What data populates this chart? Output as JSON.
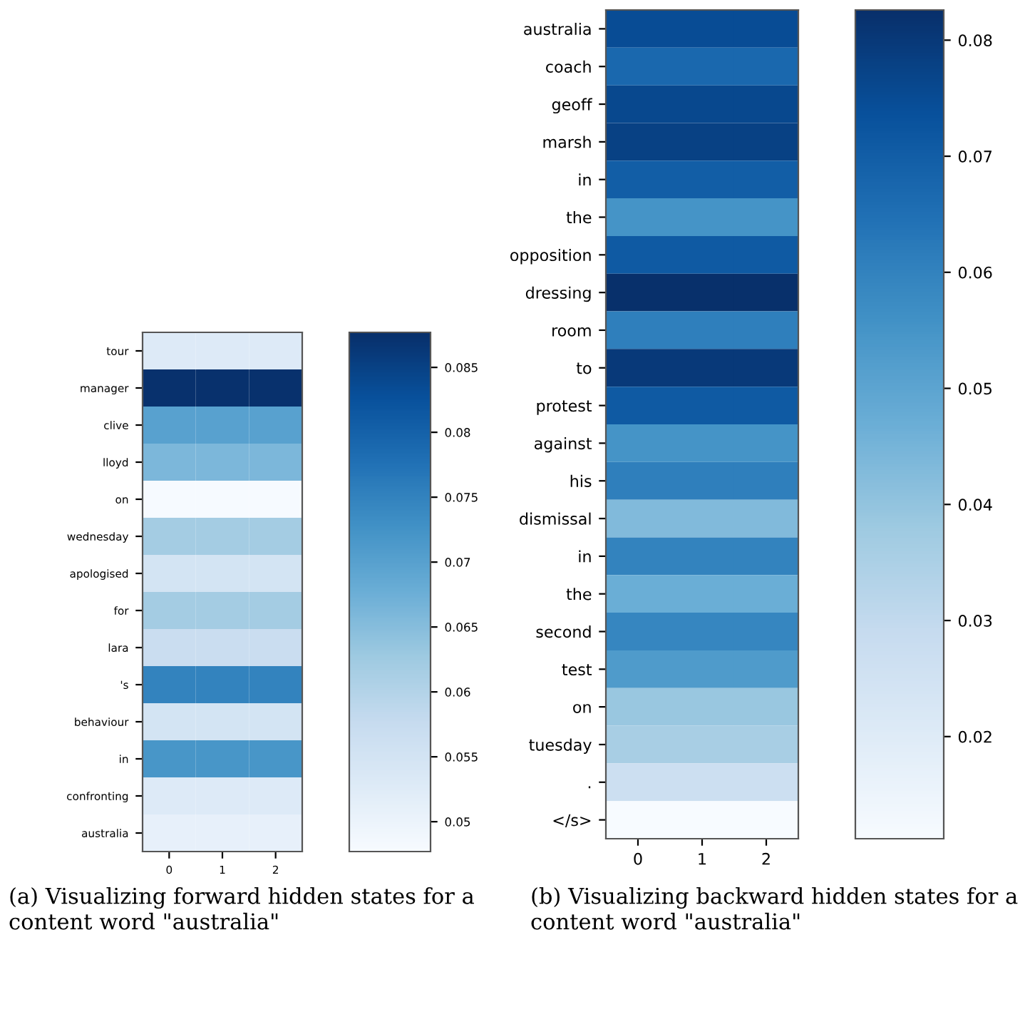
{
  "chart_data": [
    {
      "type": "heatmap",
      "categories": [
        "0",
        "1",
        "2"
      ],
      "y_categories": [
        "tour",
        "manager",
        "clive",
        "lloyd",
        "on",
        "wednesday",
        "apologised",
        "for",
        "lara",
        "'s",
        "behaviour",
        "in",
        "confronting",
        "australia"
      ],
      "cells": [
        [
          0.053,
          0.053,
          0.053
        ],
        [
          0.0875,
          0.0875,
          0.0875
        ],
        [
          0.07,
          0.07,
          0.07
        ],
        [
          0.066,
          0.066,
          0.066
        ],
        [
          0.048,
          0.048,
          0.048
        ],
        [
          0.062,
          0.062,
          0.062
        ],
        [
          0.055,
          0.055,
          0.055
        ],
        [
          0.062,
          0.062,
          0.062
        ],
        [
          0.057,
          0.057,
          0.057
        ],
        [
          0.075,
          0.075,
          0.075
        ],
        [
          0.055,
          0.055,
          0.055
        ],
        [
          0.072,
          0.072,
          0.072
        ],
        [
          0.053,
          0.053,
          0.053
        ],
        [
          0.051,
          0.051,
          0.051
        ]
      ],
      "clim": [
        0.0477,
        0.0877
      ],
      "cticks": [
        0.05,
        0.055,
        0.06,
        0.065,
        0.07,
        0.075,
        0.08,
        0.085
      ],
      "annotations": [
        "(a) Visualizing forward hidden states for a content word \"australia\""
      ]
    },
    {
      "type": "heatmap",
      "categories": [
        "0",
        "1",
        "2"
      ],
      "y_categories": [
        "australia",
        "coach",
        "geoff",
        "marsh",
        "in",
        "the",
        "opposition",
        "dressing",
        "room",
        "to",
        "protest",
        "against",
        "his",
        "dismissal",
        "in",
        "the",
        "second",
        "test",
        "on",
        "tuesday",
        ".",
        "</s>"
      ],
      "cells": [
        [
          0.075,
          0.075,
          0.075
        ],
        [
          0.067,
          0.067,
          0.067
        ],
        [
          0.076,
          0.076,
          0.076
        ],
        [
          0.078,
          0.078,
          0.078
        ],
        [
          0.07,
          0.07,
          0.07
        ],
        [
          0.055,
          0.055,
          0.055
        ],
        [
          0.071,
          0.071,
          0.071
        ],
        [
          0.0825,
          0.0825,
          0.0825
        ],
        [
          0.061,
          0.061,
          0.061
        ],
        [
          0.08,
          0.08,
          0.08
        ],
        [
          0.071,
          0.071,
          0.071
        ],
        [
          0.055,
          0.055,
          0.055
        ],
        [
          0.061,
          0.061,
          0.061
        ],
        [
          0.043,
          0.043,
          0.043
        ],
        [
          0.06,
          0.06,
          0.06
        ],
        [
          0.047,
          0.047,
          0.047
        ],
        [
          0.059,
          0.059,
          0.059
        ],
        [
          0.053,
          0.053,
          0.053
        ],
        [
          0.039,
          0.039,
          0.039
        ],
        [
          0.036,
          0.036,
          0.036
        ],
        [
          0.027,
          0.027,
          0.027
        ],
        [
          0.0112,
          0.0112,
          0.0112
        ]
      ],
      "clim": [
        0.0112,
        0.0826
      ],
      "cticks": [
        0.02,
        0.03,
        0.04,
        0.05,
        0.06,
        0.07,
        0.08
      ],
      "annotations": [
        "(b) Visualizing backward hidden states for a content word \"australia\""
      ]
    }
  ]
}
